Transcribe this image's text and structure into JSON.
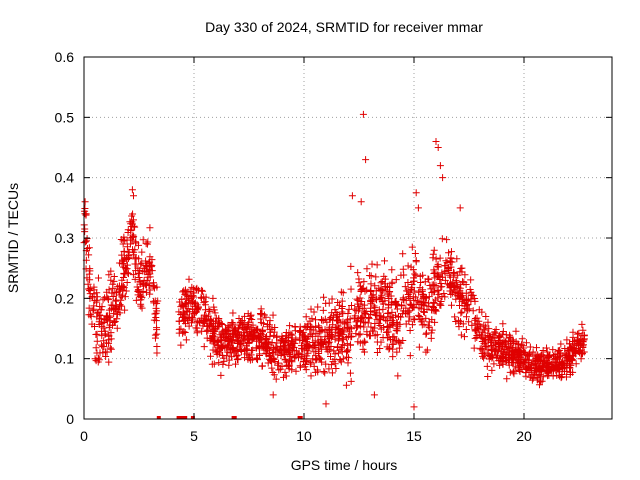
{
  "chart_data": {
    "type": "scatter",
    "title": "Day 330 of 2024, SRMTID for receiver mmar",
    "xlabel": "GPS time / hours",
    "ylabel": "SRMTID / TECUs",
    "xlim": [
      0,
      24
    ],
    "ylim": [
      0,
      0.6
    ],
    "x_ticks": [
      0,
      5,
      10,
      15,
      20
    ],
    "x_tick_labels": [
      "0",
      "5",
      "10",
      "15",
      "20"
    ],
    "y_ticks": [
      0,
      0.1,
      0.2,
      0.3,
      0.4,
      0.5,
      0.6
    ],
    "y_tick_labels": [
      "0",
      "0.1",
      "0.2",
      "0.3",
      "0.4",
      "0.5",
      "0.6"
    ],
    "grid": true,
    "marker": "plus",
    "color": "#e00000",
    "axis_color": "#000000",
    "grid_color": "#a0a0a0",
    "zero_points_x": [
      3.4,
      4.3,
      4.45,
      4.6,
      4.95,
      6.8,
      6.85,
      9.8,
      9.85
    ],
    "profile": [
      {
        "x": 0.0,
        "y": 0.33
      },
      {
        "x": 0.2,
        "y": 0.22
      },
      {
        "x": 0.5,
        "y": 0.17
      },
      {
        "x": 0.8,
        "y": 0.15
      },
      {
        "x": 1.2,
        "y": 0.17
      },
      {
        "x": 1.6,
        "y": 0.22
      },
      {
        "x": 2.0,
        "y": 0.28
      },
      {
        "x": 2.2,
        "y": 0.31
      },
      {
        "x": 2.5,
        "y": 0.22
      },
      {
        "x": 2.8,
        "y": 0.24
      },
      {
        "x": 3.0,
        "y": 0.26
      },
      {
        "x": 3.3,
        "y": 0.16
      },
      {
        "x": 4.5,
        "y": 0.18
      },
      {
        "x": 5.0,
        "y": 0.19
      },
      {
        "x": 5.5,
        "y": 0.17
      },
      {
        "x": 6.0,
        "y": 0.13
      },
      {
        "x": 7.0,
        "y": 0.13
      },
      {
        "x": 8.0,
        "y": 0.14
      },
      {
        "x": 8.8,
        "y": 0.11
      },
      {
        "x": 9.5,
        "y": 0.12
      },
      {
        "x": 10.0,
        "y": 0.12
      },
      {
        "x": 11.0,
        "y": 0.13
      },
      {
        "x": 12.0,
        "y": 0.15
      },
      {
        "x": 12.5,
        "y": 0.18
      },
      {
        "x": 13.0,
        "y": 0.17
      },
      {
        "x": 13.5,
        "y": 0.19
      },
      {
        "x": 14.0,
        "y": 0.17
      },
      {
        "x": 14.5,
        "y": 0.19
      },
      {
        "x": 15.0,
        "y": 0.2
      },
      {
        "x": 15.5,
        "y": 0.18
      },
      {
        "x": 16.0,
        "y": 0.22
      },
      {
        "x": 16.5,
        "y": 0.25
      },
      {
        "x": 17.0,
        "y": 0.2
      },
      {
        "x": 17.5,
        "y": 0.19
      },
      {
        "x": 18.0,
        "y": 0.14
      },
      {
        "x": 18.5,
        "y": 0.12
      },
      {
        "x": 19.0,
        "y": 0.12
      },
      {
        "x": 19.5,
        "y": 0.11
      },
      {
        "x": 20.0,
        "y": 0.1
      },
      {
        "x": 20.5,
        "y": 0.09
      },
      {
        "x": 21.0,
        "y": 0.09
      },
      {
        "x": 21.5,
        "y": 0.09
      },
      {
        "x": 22.0,
        "y": 0.1
      },
      {
        "x": 22.5,
        "y": 0.12
      },
      {
        "x": 22.7,
        "y": 0.13
      }
    ],
    "segments": [
      [
        0.0,
        3.35
      ],
      [
        4.3,
        22.75
      ]
    ],
    "spread": [
      {
        "x": 0.0,
        "s": 0.05
      },
      {
        "x": 2.0,
        "s": 0.06
      },
      {
        "x": 3.3,
        "s": 0.05
      },
      {
        "x": 5.0,
        "s": 0.04
      },
      {
        "x": 9.0,
        "s": 0.035
      },
      {
        "x": 12.0,
        "s": 0.06
      },
      {
        "x": 15.0,
        "s": 0.07
      },
      {
        "x": 17.0,
        "s": 0.05
      },
      {
        "x": 20.0,
        "s": 0.025
      },
      {
        "x": 22.7,
        "s": 0.025
      }
    ],
    "point_count": 2200,
    "outliers": [
      {
        "x": 12.7,
        "y": 0.505
      },
      {
        "x": 12.8,
        "y": 0.43
      },
      {
        "x": 16.0,
        "y": 0.46
      },
      {
        "x": 16.1,
        "y": 0.45
      },
      {
        "x": 16.2,
        "y": 0.42
      },
      {
        "x": 16.3,
        "y": 0.4
      },
      {
        "x": 15.1,
        "y": 0.375
      },
      {
        "x": 15.2,
        "y": 0.35
      },
      {
        "x": 12.2,
        "y": 0.37
      },
      {
        "x": 12.6,
        "y": 0.36
      },
      {
        "x": 2.2,
        "y": 0.38
      },
      {
        "x": 2.25,
        "y": 0.37
      },
      {
        "x": 0.05,
        "y": 0.36
      },
      {
        "x": 0.1,
        "y": 0.34
      },
      {
        "x": 17.1,
        "y": 0.35
      },
      {
        "x": 13.2,
        "y": 0.04
      },
      {
        "x": 15.0,
        "y": 0.02
      },
      {
        "x": 11.0,
        "y": 0.025
      },
      {
        "x": 8.6,
        "y": 0.04
      }
    ]
  }
}
